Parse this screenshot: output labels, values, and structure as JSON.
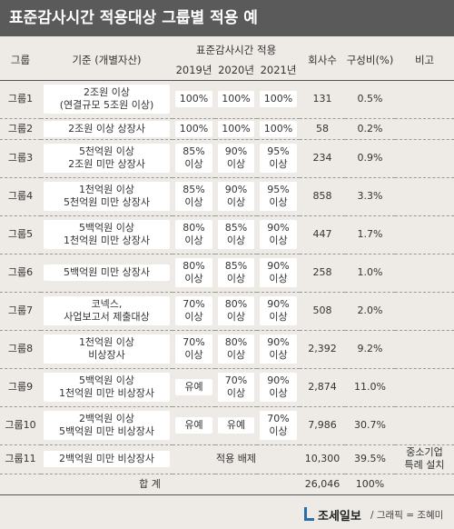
{
  "title": "표준감사시간 적용대상 그룹별 적용 예",
  "table": {
    "header": {
      "group": "그룹",
      "criterion": "기준 (개별자산)",
      "standard_hours": "표준감사시간 적용",
      "years": [
        "2019년",
        "2020년",
        "2021년"
      ],
      "companies": "회사수",
      "ratio": "구성비(%)",
      "note": "비고"
    },
    "rows": [
      {
        "group": "그룹1",
        "criterion": "2조원 이상\n(연결규모 5조원 이상)",
        "y2019": "100%",
        "y2020": "100%",
        "y2021": "100%",
        "companies": "131",
        "ratio": "0.5%"
      },
      {
        "group": "그룹2",
        "criterion": "2조원 이상 상장사",
        "y2019": "100%",
        "y2020": "100%",
        "y2021": "100%",
        "companies": "58",
        "ratio": "0.2%"
      },
      {
        "group": "그룹3",
        "criterion": "5천억원 이상\n2조원 미만 상장사",
        "y2019": "85%\n이상",
        "y2020": "90%\n이상",
        "y2021": "95%\n이상",
        "companies": "234",
        "ratio": "0.9%"
      },
      {
        "group": "그룹4",
        "criterion": "1천억원 이상\n5천억원 미만 상장사",
        "y2019": "85%\n이상",
        "y2020": "90%\n이상",
        "y2021": "95%\n이상",
        "companies": "858",
        "ratio": "3.3%"
      },
      {
        "group": "그룹5",
        "criterion": "5백억원 이상\n1천억원 미만 상장사",
        "y2019": "80%\n이상",
        "y2020": "85%\n이상",
        "y2021": "90%\n이상",
        "companies": "447",
        "ratio": "1.7%"
      },
      {
        "group": "그룹6",
        "criterion": "5백억원 미만 상장사",
        "y2019": "80%\n이상",
        "y2020": "85%\n이상",
        "y2021": "90%\n이상",
        "companies": "258",
        "ratio": "1.0%"
      },
      {
        "group": "그룹7",
        "criterion": "코넥스,\n사업보고서 제출대상",
        "y2019": "70%\n이상",
        "y2020": "80%\n이상",
        "y2021": "90%\n이상",
        "companies": "508",
        "ratio": "2.0%"
      },
      {
        "group": "그룹8",
        "criterion": "1천억원 이상\n비상장사",
        "y2019": "70%\n이상",
        "y2020": "80%\n이상",
        "y2021": "90%\n이상",
        "companies": "2,392",
        "ratio": "9.2%"
      },
      {
        "group": "그룹9",
        "criterion": "5백억원 이상\n1천억원 미만 비상장사",
        "y2019": "유예",
        "y2020": "70%\n이상",
        "y2021": "90%\n이상",
        "companies": "2,874",
        "ratio": "11.0%"
      },
      {
        "group": "그룹10",
        "criterion": "2백억원 이상\n5백억원 미만 비상장사",
        "y2019": "유예",
        "y2020": "유예",
        "y2021": "70%\n이상",
        "companies": "7,986",
        "ratio": "30.7%"
      },
      {
        "group": "그룹11",
        "criterion": "2백억원 미만 비상장사",
        "exempt": "적용 배제",
        "companies": "10,300",
        "ratio": "39.5%",
        "note": "중소기업\n특례 설치"
      }
    ],
    "total": {
      "label": "합 계",
      "companies": "26,046",
      "ratio": "100%"
    }
  },
  "footer": {
    "logo": "조세일보",
    "credit": "/ 그래픽 = 조혜미"
  }
}
